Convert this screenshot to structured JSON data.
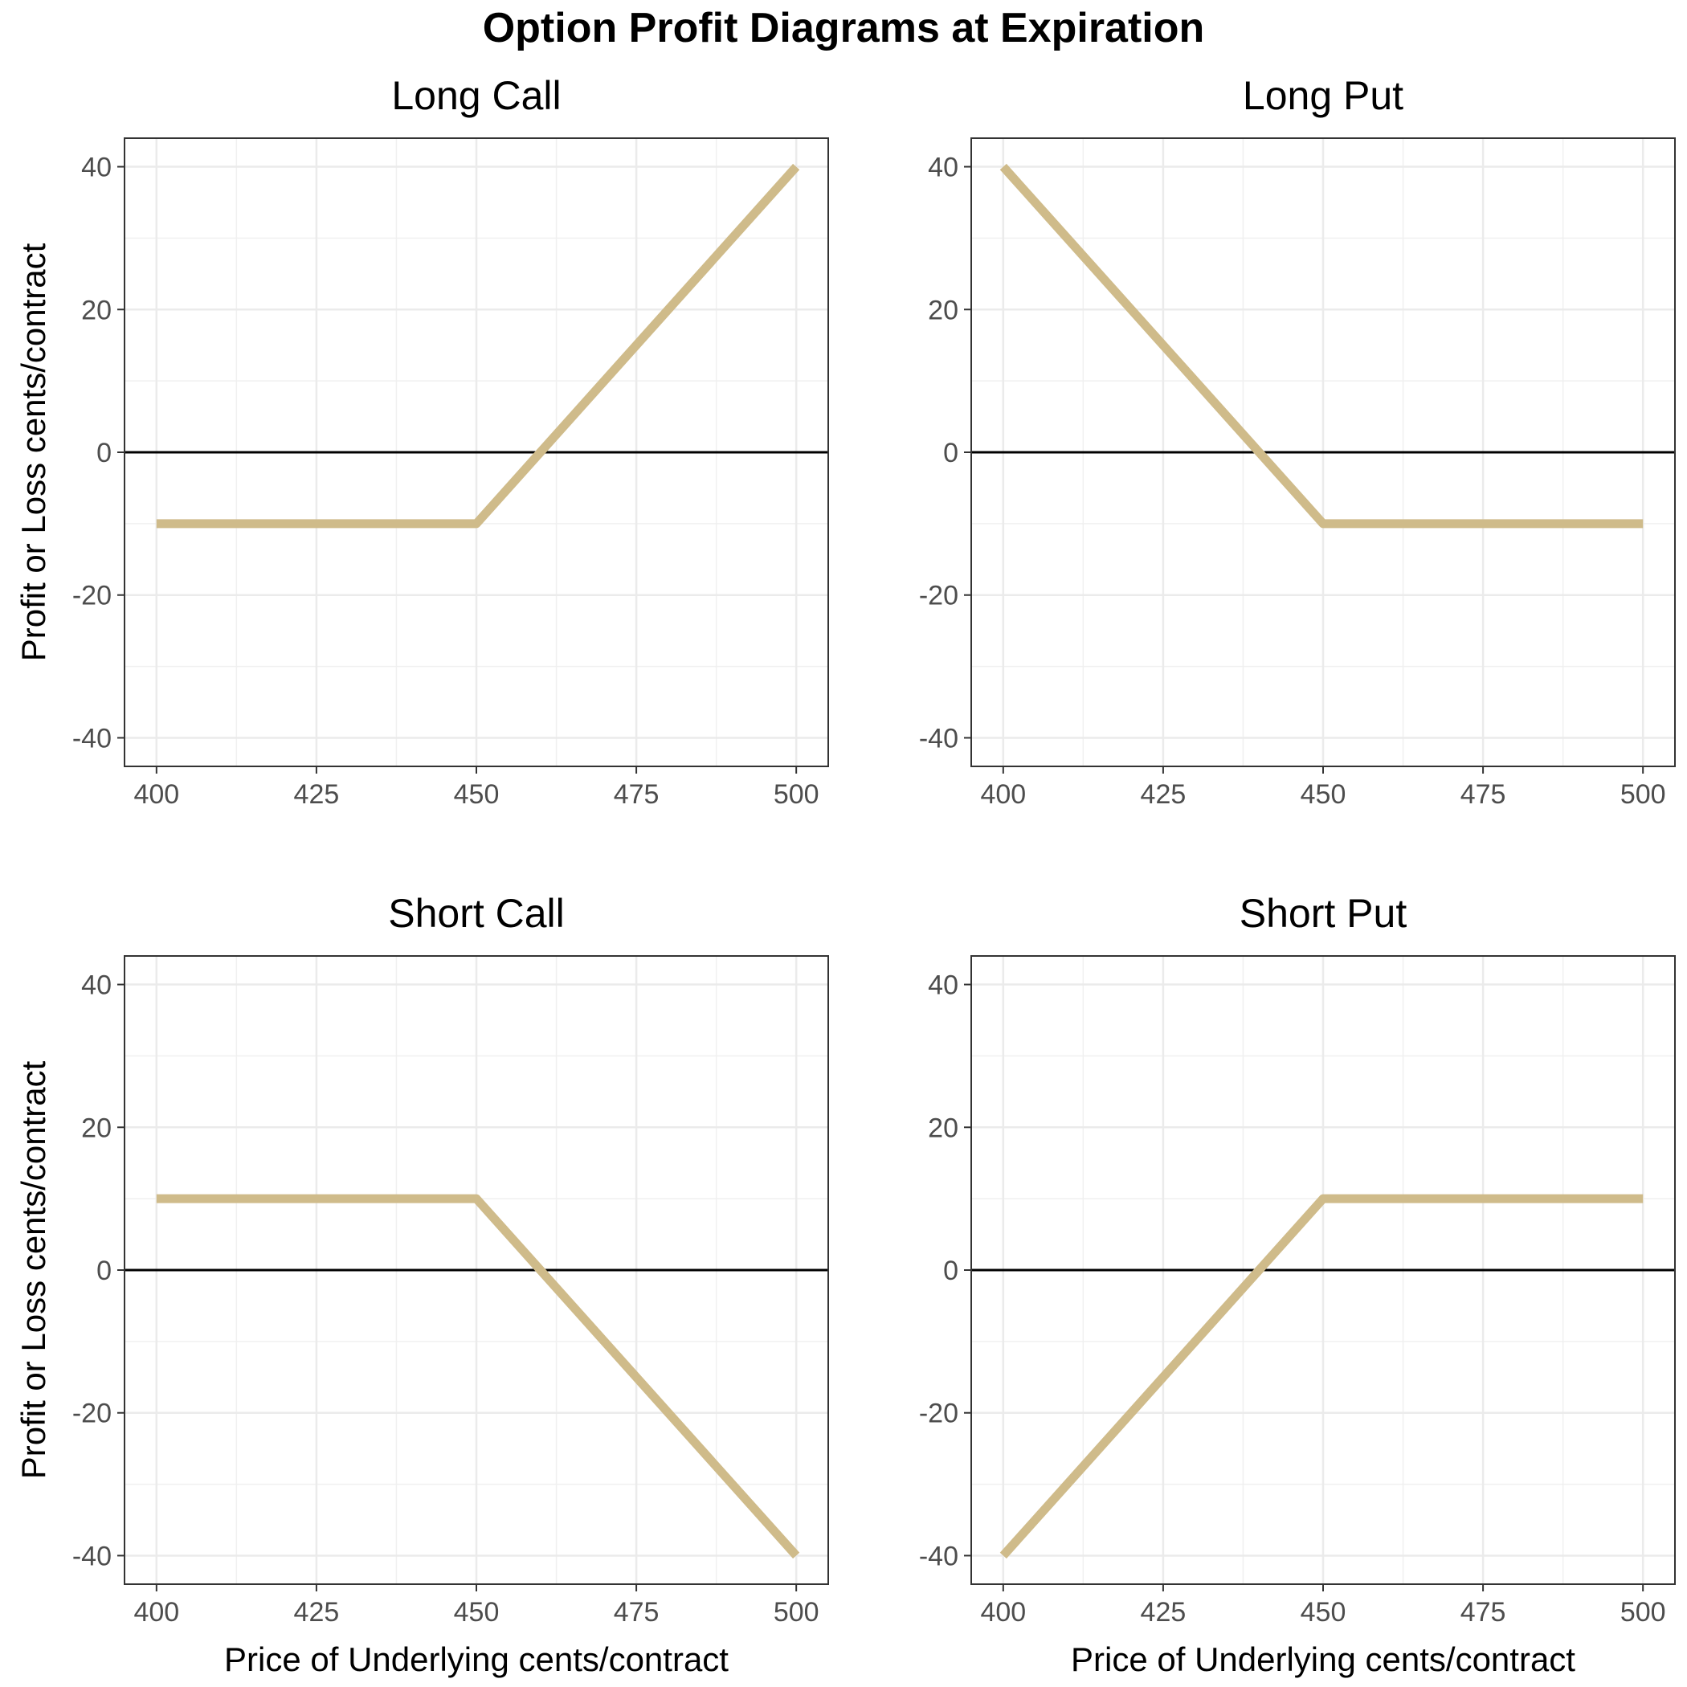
{
  "title": "Option Profit Diagrams at Expiration",
  "chart_data": [
    {
      "type": "line",
      "title": "Long Call",
      "xlabel": "",
      "ylabel": "Profit or Loss cents/contract",
      "xlim": [
        395,
        505
      ],
      "ylim": [
        -44,
        44
      ],
      "xticks": [
        400,
        425,
        450,
        475,
        500
      ],
      "yticks": [
        40,
        20,
        0,
        -20,
        -40
      ],
      "grid": true,
      "zero_line": true,
      "color": "#cfbb8a",
      "x": [
        400,
        450,
        500
      ],
      "y": [
        -10,
        -10,
        40
      ]
    },
    {
      "type": "line",
      "title": "Long Put",
      "xlabel": "",
      "ylabel": "",
      "xlim": [
        395,
        505
      ],
      "ylim": [
        -44,
        44
      ],
      "xticks": [
        400,
        425,
        450,
        475,
        500
      ],
      "yticks": [
        40,
        20,
        0,
        -20,
        -40
      ],
      "grid": true,
      "zero_line": true,
      "color": "#cfbb8a",
      "x": [
        400,
        450,
        500
      ],
      "y": [
        40,
        -10,
        -10
      ]
    },
    {
      "type": "line",
      "title": "Short Call",
      "xlabel": "Price of Underlying cents/contract",
      "ylabel": "Profit or Loss cents/contract",
      "xlim": [
        395,
        505
      ],
      "ylim": [
        -44,
        44
      ],
      "xticks": [
        400,
        425,
        450,
        475,
        500
      ],
      "yticks": [
        40,
        20,
        0,
        -20,
        -40
      ],
      "grid": true,
      "zero_line": true,
      "color": "#cfbb8a",
      "x": [
        400,
        450,
        500
      ],
      "y": [
        10,
        10,
        -40
      ]
    },
    {
      "type": "line",
      "title": "Short Put",
      "xlabel": "Price of Underlying cents/contract",
      "ylabel": "",
      "xlim": [
        395,
        505
      ],
      "ylim": [
        -44,
        44
      ],
      "xticks": [
        400,
        425,
        450,
        475,
        500
      ],
      "yticks": [
        40,
        20,
        0,
        -20,
        -40
      ],
      "grid": true,
      "zero_line": true,
      "color": "#cfbb8a",
      "x": [
        400,
        450,
        500
      ],
      "y": [
        -40,
        10,
        10
      ]
    }
  ]
}
